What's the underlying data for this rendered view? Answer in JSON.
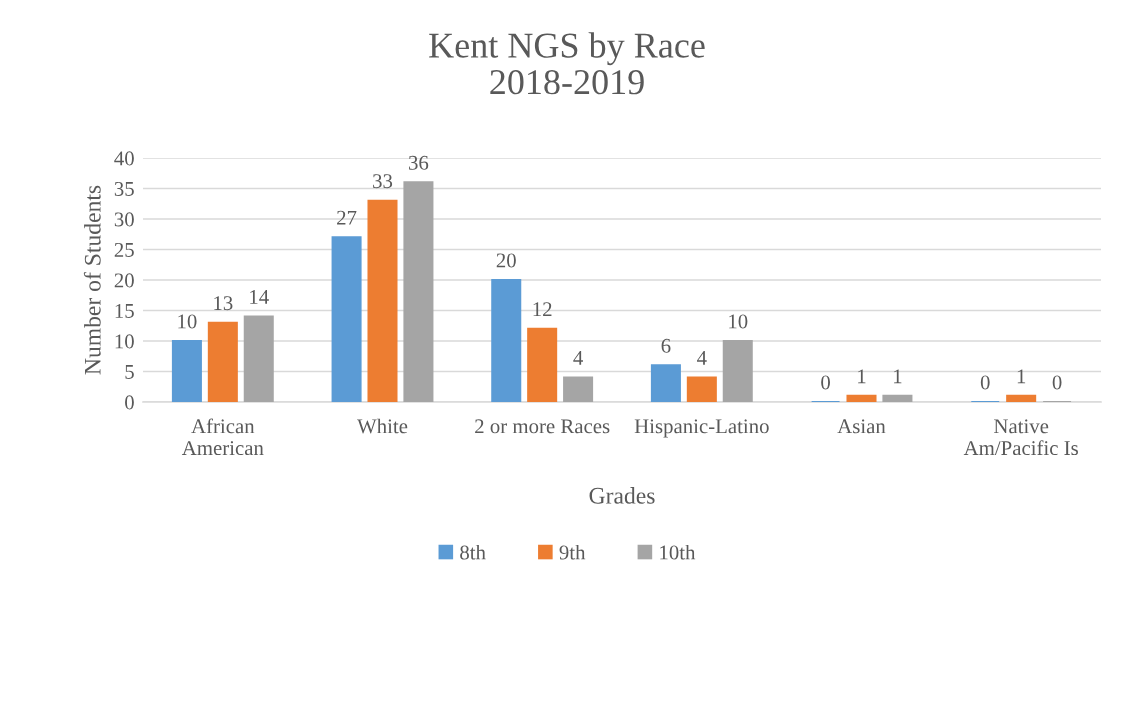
{
  "chart_data": {
    "type": "bar",
    "title": "Kent NGS by Race\n2018-2019",
    "xlabel": "Grades",
    "ylabel": "Number of Students",
    "categories": [
      "African\nAmerican",
      "White",
      "2 or more Races",
      "Hispanic-Latino",
      "Asian",
      "Native\nAm/Pacific Is"
    ],
    "series": [
      {
        "name": "8th",
        "color": "#5b9bd5",
        "values": [
          10,
          27,
          20,
          6,
          0,
          0
        ]
      },
      {
        "name": "9th",
        "color": "#ed7d31",
        "values": [
          13,
          33,
          12,
          4,
          1,
          1
        ]
      },
      {
        "name": "10th",
        "color": "#a5a5a5",
        "values": [
          14,
          36,
          4,
          10,
          1,
          0
        ]
      }
    ],
    "ylim": [
      0,
      40
    ],
    "yticks": [
      0,
      5,
      10,
      15,
      20,
      25,
      30,
      35,
      40
    ],
    "grid": "y",
    "legend": "bottom",
    "data_labels": true
  }
}
